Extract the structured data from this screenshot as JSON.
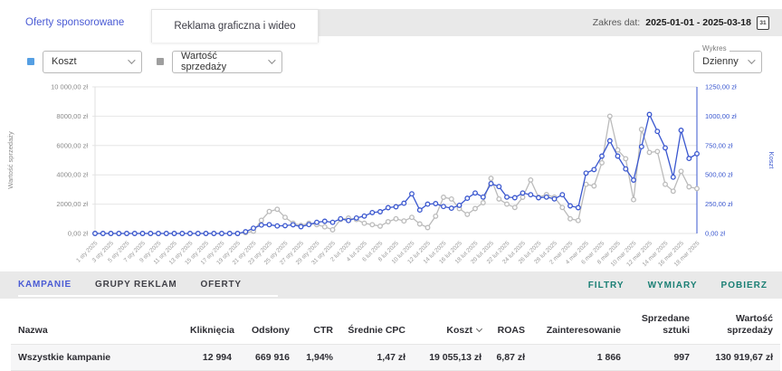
{
  "header": {
    "tab_sponsored": "Oferty sponsorowane",
    "tab_display": "Reklama graficzna i wideo",
    "date_range_label": "Zakres dat:",
    "date_range_value": "2025-01-01 - 2025-03-18",
    "calendar_icon_day": "31"
  },
  "controls": {
    "metric1_value": "Koszt",
    "metric2_value": "Wartość sprzedaży",
    "chart_select_label": "Wykres",
    "chart_select_value": "Dzienny"
  },
  "chart_data": {
    "type": "line",
    "title": "",
    "x_unit": "day",
    "x_range": [
      "2025-01-01",
      "2025-03-18"
    ],
    "grid": true,
    "legend_position": "none",
    "xticklabels": [
      "1 sty 2025",
      "3 sty 2025",
      "5 sty 2025",
      "7 sty 2025",
      "9 sty 2025",
      "11 sty 2025",
      "13 sty 2025",
      "15 sty 2025",
      "17 sty 2025",
      "19 sty 2025",
      "21 sty 2025",
      "23 sty 2025",
      "25 sty 2025",
      "27 sty 2025",
      "29 sty 2025",
      "31 sty 2025",
      "2 lut 2025",
      "4 lut 2025",
      "6 lut 2025",
      "8 lut 2025",
      "10 lut 2025",
      "12 lut 2025",
      "14 lut 2025",
      "16 lut 2025",
      "18 lut 2025",
      "20 lut 2025",
      "22 lut 2025",
      "24 lut 2025",
      "26 lut 2025",
      "28 lut 2025",
      "2 mar 2025",
      "4 mar 2025",
      "6 mar 2025",
      "8 mar 2025",
      "10 mar 2025",
      "12 mar 2025",
      "14 mar 2025",
      "16 mar 2025",
      "18 mar 2025"
    ],
    "left_axis": {
      "label": "Wartość sprzedaży",
      "min": 0,
      "max": 10000,
      "ticks": [
        "0,00 zł",
        "2000,00 zł",
        "4000,00 zł",
        "6000,00 zł",
        "8000,00 zł",
        "10 000,00 zł"
      ]
    },
    "right_axis": {
      "label": "Koszt",
      "min": 0,
      "max": 1250,
      "ticks": [
        "0,00 zł",
        "250,00 zł",
        "500,00 zł",
        "750,00 zł",
        "1000,00 zł",
        "1250,00 zł"
      ]
    },
    "series": [
      {
        "name": "Wartość sprzedaży",
        "axis": "left",
        "color": "#bbbbbb",
        "values": [
          0,
          0,
          0,
          0,
          0,
          0,
          0,
          0,
          0,
          0,
          0,
          0,
          0,
          0,
          0,
          0,
          0,
          0,
          0,
          50,
          150,
          900,
          1500,
          1650,
          1100,
          700,
          550,
          700,
          600,
          450,
          250,
          950,
          1050,
          950,
          700,
          600,
          500,
          800,
          1000,
          850,
          1100,
          650,
          400,
          1180,
          2470,
          2350,
          1700,
          1300,
          1700,
          2100,
          3760,
          2350,
          2000,
          1770,
          2470,
          3650,
          2470,
          2650,
          2470,
          1770,
          1000,
          880,
          3350,
          3240,
          4820,
          8000,
          5700,
          5100,
          2300,
          7100,
          5530,
          5590,
          3350,
          2880,
          4240,
          3180,
          3060
        ]
      },
      {
        "name": "Koszt",
        "axis": "right",
        "color": "#3a57cf",
        "values": [
          0,
          0,
          0,
          0,
          0,
          0,
          0,
          0,
          0,
          0,
          0,
          0,
          0,
          0,
          0,
          0,
          0,
          0,
          0,
          15,
          45,
          72,
          75,
          64,
          66,
          74,
          58,
          76,
          95,
          104,
          95,
          125,
          110,
          132,
          148,
          178,
          185,
          220,
          228,
          258,
          338,
          200,
          250,
          255,
          230,
          215,
          240,
          300,
          345,
          310,
          425,
          400,
          310,
          305,
          345,
          330,
          305,
          310,
          295,
          330,
          235,
          220,
          515,
          545,
          660,
          790,
          660,
          550,
          455,
          740,
          1015,
          870,
          730,
          480,
          880,
          640,
          680
        ]
      }
    ]
  },
  "table_section": {
    "tabs": [
      "KAMPANIE",
      "GRUPY REKLAM",
      "OFERTY"
    ],
    "active_tab": "KAMPANIE",
    "actions": [
      "FILTRY",
      "WYMIARY",
      "POBIERZ"
    ],
    "columns": [
      "Nazwa",
      "Kliknięcia",
      "Odsłony",
      "CTR",
      "Średnie CPC",
      "Koszt",
      "ROAS",
      "Zainteresowanie",
      "Sprzedane sztuki",
      "Wartość sprzedaży"
    ],
    "sorted_column": "Koszt",
    "rows": [
      [
        "Wszystkie kampanie",
        "12 994",
        "669 916",
        "1,94%",
        "1,47 zł",
        "19 055,13 zł",
        "6,87 zł",
        "1 866",
        "997",
        "130 919,67 zł"
      ]
    ]
  },
  "icons": {
    "calendar_icon": "calendar with day number",
    "chevron_down_icon": "caret shape",
    "sort_desc_icon": "caret shape"
  },
  "colors": {
    "accent_blue": "#4a5bd4",
    "line_blue": "#3a57cf",
    "line_gray": "#bbbbbb",
    "legend_blue": "#559fe3",
    "legend_gray": "#9e9e9e",
    "teal_link": "#1a7f74",
    "band_gray": "#e9e9e9",
    "axis_text_gray": "#8a8a8a"
  }
}
